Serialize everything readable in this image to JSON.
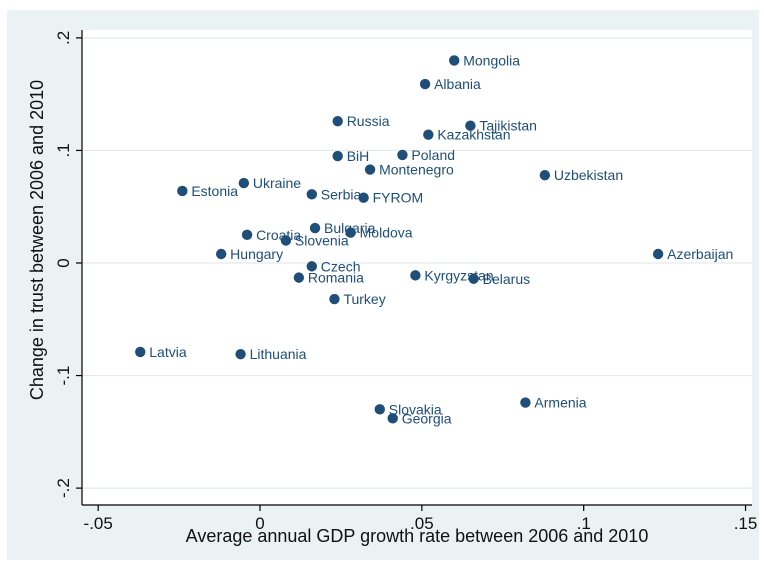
{
  "chart_data": {
    "type": "scatter",
    "title": "",
    "xlabel": "Average annual GDP growth rate between 2006 and 2010",
    "ylabel": "Change in trust between 2006 and 2010",
    "xlim": [
      -0.055,
      0.152
    ],
    "ylim": [
      -0.215,
      0.207
    ],
    "xticks": [
      {
        "value": -0.05,
        "label": "-.05"
      },
      {
        "value": 0,
        "label": "0"
      },
      {
        "value": 0.05,
        "label": ".05"
      },
      {
        "value": 0.1,
        "label": ".1"
      },
      {
        "value": 0.15,
        "label": ".15"
      }
    ],
    "yticks": [
      {
        "value": -0.2,
        "label": "-.2"
      },
      {
        "value": -0.1,
        "label": "-.1"
      },
      {
        "value": 0,
        "label": "0"
      },
      {
        "value": 0.1,
        "label": ".1"
      },
      {
        "value": 0.2,
        "label": ".2"
      }
    ],
    "grid": true,
    "legend": "none",
    "marker_color": "#1f4e79",
    "background_color": "#eaf2f3",
    "plot_background_color": "#ffffff",
    "points": [
      {
        "label": "Mongolia",
        "x": 0.06,
        "y": 0.18
      },
      {
        "label": "Albania",
        "x": 0.051,
        "y": 0.159
      },
      {
        "label": "Russia",
        "x": 0.024,
        "y": 0.126
      },
      {
        "label": "Tajikistan",
        "x": 0.065,
        "y": 0.122
      },
      {
        "label": "Kazakhstan",
        "x": 0.052,
        "y": 0.114
      },
      {
        "label": "BiH",
        "x": 0.024,
        "y": 0.095
      },
      {
        "label": "Poland",
        "x": 0.044,
        "y": 0.096
      },
      {
        "label": "Montenegro",
        "x": 0.034,
        "y": 0.083
      },
      {
        "label": "Uzbekistan",
        "x": 0.088,
        "y": 0.078
      },
      {
        "label": "Estonia",
        "x": -0.024,
        "y": 0.064
      },
      {
        "label": "Ukraine",
        "x": -0.005,
        "y": 0.071
      },
      {
        "label": "Serbia",
        "x": 0.016,
        "y": 0.061
      },
      {
        "label": "FYROM",
        "x": 0.032,
        "y": 0.058
      },
      {
        "label": "Bulgaria",
        "x": 0.017,
        "y": 0.031
      },
      {
        "label": "Moldova",
        "x": 0.028,
        "y": 0.027
      },
      {
        "label": "Croatia",
        "x": -0.004,
        "y": 0.025
      },
      {
        "label": "Slovenia",
        "x": 0.008,
        "y": 0.02
      },
      {
        "label": "Hungary",
        "x": -0.012,
        "y": 0.008
      },
      {
        "label": "Azerbaijan",
        "x": 0.123,
        "y": 0.008
      },
      {
        "label": "Czech",
        "x": 0.016,
        "y": -0.003
      },
      {
        "label": "Romania",
        "x": 0.012,
        "y": -0.013
      },
      {
        "label": "Kyrgyzstan",
        "x": 0.048,
        "y": -0.011
      },
      {
        "label": "Belarus",
        "x": 0.066,
        "y": -0.014
      },
      {
        "label": "Turkey",
        "x": 0.023,
        "y": -0.032
      },
      {
        "label": "Latvia",
        "x": -0.037,
        "y": -0.079
      },
      {
        "label": "Lithuania",
        "x": -0.006,
        "y": -0.081
      },
      {
        "label": "Armenia",
        "x": 0.082,
        "y": -0.124
      },
      {
        "label": "Slovakia",
        "x": 0.037,
        "y": -0.13
      },
      {
        "label": "Georgia",
        "x": 0.041,
        "y": -0.138
      }
    ]
  }
}
